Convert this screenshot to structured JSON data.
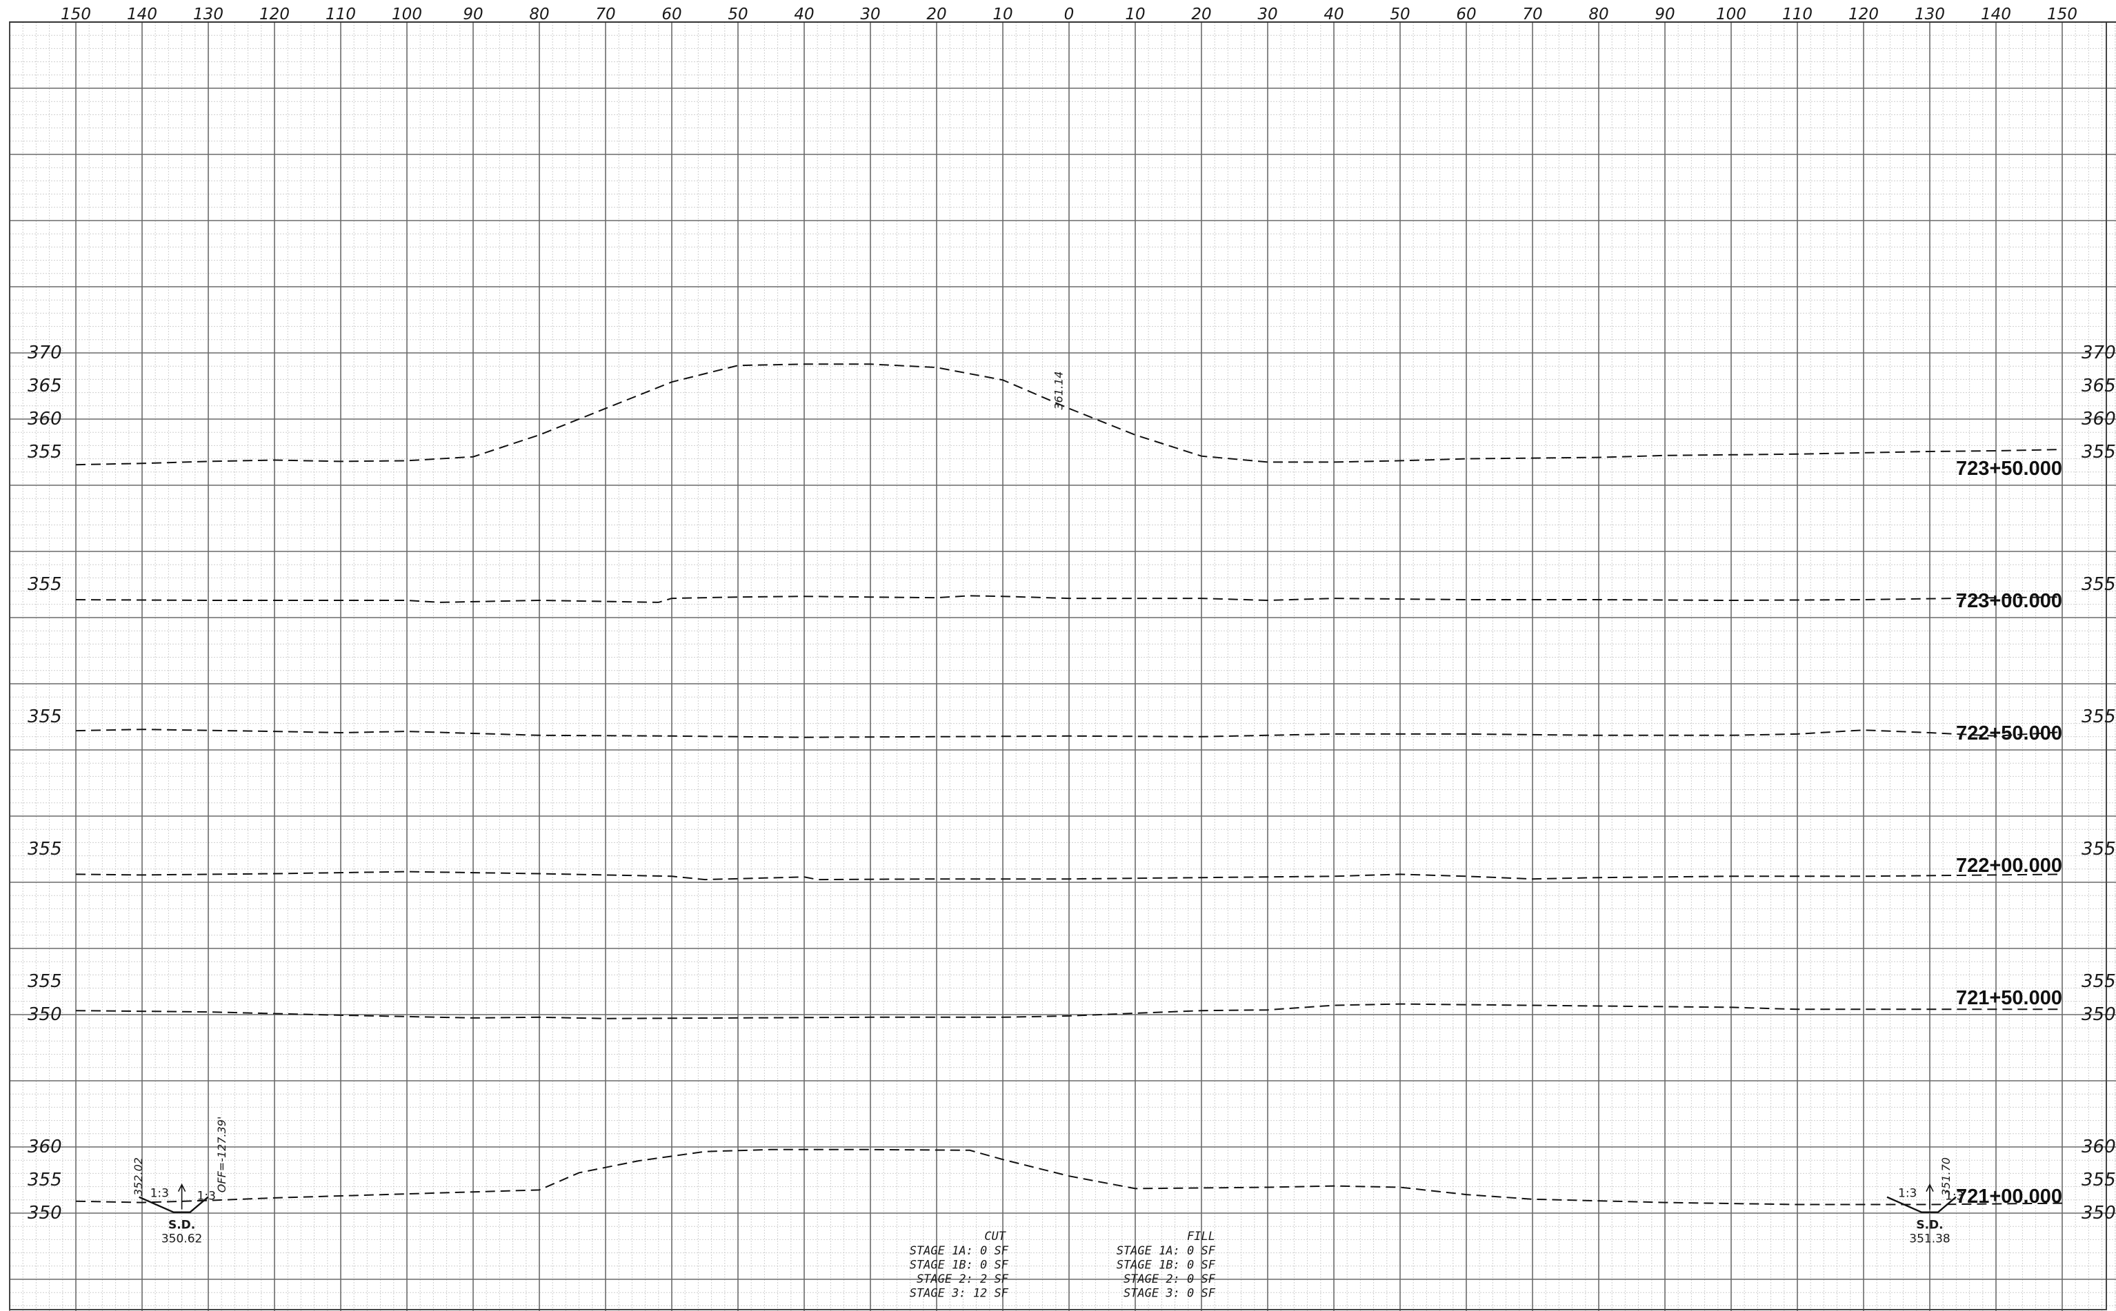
{
  "offset_labels": [
    "150",
    "140",
    "130",
    "120",
    "110",
    "100",
    "90",
    "80",
    "70",
    "60",
    "50",
    "40",
    "30",
    "20",
    "10",
    "0",
    "10",
    "20",
    "30",
    "40",
    "50",
    "60",
    "70",
    "80",
    "90",
    "100",
    "110",
    "120",
    "130",
    "140",
    "150"
  ],
  "sections": [
    {
      "station": "723+50.000",
      "elevation_labels": [
        "370",
        "365",
        "360",
        "355"
      ],
      "ground": [
        [
          -150,
          353.0
        ],
        [
          -140,
          353.2
        ],
        [
          -130,
          353.5
        ],
        [
          -120,
          353.7
        ],
        [
          -110,
          353.5
        ],
        [
          -100,
          353.6
        ],
        [
          -90,
          354.2
        ],
        [
          -80,
          357.5
        ],
        [
          -70,
          361.5
        ],
        [
          -60,
          365.5
        ],
        [
          -50,
          368.0
        ],
        [
          -40,
          368.2
        ],
        [
          -30,
          368.2
        ],
        [
          -20,
          367.7
        ],
        [
          -10,
          365.8
        ],
        [
          0,
          361.5
        ],
        [
          10,
          357.5
        ],
        [
          20,
          354.3
        ],
        [
          30,
          353.4
        ],
        [
          40,
          353.4
        ],
        [
          50,
          353.6
        ],
        [
          60,
          353.9
        ],
        [
          70,
          354.0
        ],
        [
          80,
          354.1
        ],
        [
          90,
          354.4
        ],
        [
          100,
          354.5
        ],
        [
          110,
          354.6
        ],
        [
          120,
          354.8
        ],
        [
          130,
          355.0
        ],
        [
          140,
          355.1
        ],
        [
          150,
          355.3
        ]
      ],
      "annotations": [
        {
          "text": "361.14",
          "offset": -1,
          "elevation": 361.3
        }
      ]
    },
    {
      "station": "723+00.000",
      "elevation_labels": [
        "355"
      ],
      "ground": [
        [
          -150,
          352.6
        ],
        [
          -130,
          352.5
        ],
        [
          -100,
          352.5
        ],
        [
          -95,
          352.2
        ],
        [
          -80,
          352.5
        ],
        [
          -62,
          352.2
        ],
        [
          -60,
          352.8
        ],
        [
          -50,
          353.0
        ],
        [
          -40,
          353.1
        ],
        [
          -30,
          353.0
        ],
        [
          -20,
          352.9
        ],
        [
          -15,
          353.2
        ],
        [
          -10,
          353.1
        ],
        [
          0,
          352.8
        ],
        [
          20,
          352.8
        ],
        [
          30,
          352.5
        ],
        [
          40,
          352.8
        ],
        [
          60,
          352.6
        ],
        [
          80,
          352.6
        ],
        [
          100,
          352.5
        ],
        [
          120,
          352.6
        ],
        [
          140,
          352.9
        ],
        [
          150,
          353.0
        ]
      ],
      "annotations": []
    },
    {
      "station": "722+50.000",
      "elevation_labels": [
        "355"
      ],
      "ground": [
        [
          -150,
          352.8
        ],
        [
          -140,
          353.0
        ],
        [
          -120,
          352.7
        ],
        [
          -110,
          352.5
        ],
        [
          -100,
          352.7
        ],
        [
          -90,
          352.4
        ],
        [
          -80,
          352.1
        ],
        [
          -60,
          352.0
        ],
        [
          -40,
          351.8
        ],
        [
          -20,
          351.9
        ],
        [
          0,
          352.0
        ],
        [
          20,
          351.9
        ],
        [
          30,
          352.1
        ],
        [
          40,
          352.3
        ],
        [
          60,
          352.3
        ],
        [
          80,
          352.1
        ],
        [
          100,
          352.1
        ],
        [
          110,
          352.3
        ],
        [
          120,
          352.9
        ],
        [
          130,
          352.5
        ],
        [
          140,
          352.0
        ],
        [
          150,
          352.6
        ]
      ],
      "annotations": []
    },
    {
      "station": "722+00.000",
      "elevation_labels": [
        "355"
      ],
      "ground": [
        [
          -150,
          351.1
        ],
        [
          -140,
          351.0
        ],
        [
          -120,
          351.2
        ],
        [
          -100,
          351.5
        ],
        [
          -80,
          351.2
        ],
        [
          -60,
          350.8
        ],
        [
          -55,
          350.3
        ],
        [
          -40,
          350.7
        ],
        [
          -38,
          350.3
        ],
        [
          -20,
          350.4
        ],
        [
          0,
          350.4
        ],
        [
          20,
          350.6
        ],
        [
          40,
          350.8
        ],
        [
          50,
          351.1
        ],
        [
          60,
          350.8
        ],
        [
          70,
          350.4
        ],
        [
          80,
          350.6
        ],
        [
          100,
          350.8
        ],
        [
          120,
          350.8
        ],
        [
          140,
          351.0
        ],
        [
          150,
          351.1
        ]
      ],
      "annotations": []
    },
    {
      "station": "721+50.000",
      "elevation_labels": [
        "355",
        "350"
      ],
      "ground": [
        [
          -150,
          350.5
        ],
        [
          -130,
          350.3
        ],
        [
          -110,
          349.8
        ],
        [
          -90,
          349.4
        ],
        [
          -80,
          349.5
        ],
        [
          -70,
          349.3
        ],
        [
          -50,
          349.4
        ],
        [
          -30,
          349.5
        ],
        [
          -10,
          349.5
        ],
        [
          0,
          349.7
        ],
        [
          10,
          350.1
        ],
        [
          20,
          350.5
        ],
        [
          30,
          350.6
        ],
        [
          40,
          351.3
        ],
        [
          50,
          351.5
        ],
        [
          60,
          351.4
        ],
        [
          80,
          351.2
        ],
        [
          100,
          351.0
        ],
        [
          110,
          350.7
        ],
        [
          130,
          350.7
        ],
        [
          150,
          350.7
        ]
      ],
      "annotations": []
    },
    {
      "station": "721+00.000",
      "elevation_labels": [
        "360",
        "355",
        "350"
      ],
      "ground": [
        [
          -150,
          351.7
        ],
        [
          -140,
          351.5
        ],
        [
          -130,
          351.8
        ],
        [
          -120,
          352.2
        ],
        [
          -100,
          352.8
        ],
        [
          -80,
          353.4
        ],
        [
          -74,
          356.0
        ],
        [
          -65,
          357.8
        ],
        [
          -55,
          359.2
        ],
        [
          -45,
          359.5
        ],
        [
          -30,
          359.5
        ],
        [
          -15,
          359.4
        ],
        [
          -10,
          358.0
        ],
        [
          0,
          355.5
        ],
        [
          10,
          353.6
        ],
        [
          30,
          353.8
        ],
        [
          40,
          354.0
        ],
        [
          50,
          353.8
        ],
        [
          60,
          352.7
        ],
        [
          70,
          352.0
        ],
        [
          90,
          351.5
        ],
        [
          110,
          351.2
        ],
        [
          130,
          351.2
        ],
        [
          150,
          351.4
        ]
      ],
      "annotations": [
        {
          "text": "352.02",
          "offset": -140,
          "elevation": 352.5
        },
        {
          "text": "OFF=-127.39'",
          "offset": -127.4,
          "elevation": 353.0
        },
        {
          "text": "351.70",
          "offset": 133,
          "elevation": 352.5
        }
      ],
      "ditches": [
        {
          "label": "S.D.",
          "elevation": "350.62",
          "slope_left": "1:3",
          "slope_right": "1:3",
          "offset": -134
        },
        {
          "label": "S.D.",
          "elevation": "351.38",
          "slope_left": "1:3",
          "slope_right": "1:3",
          "offset": 130
        }
      ],
      "quantities": {
        "cut_header": "CUT",
        "fill_header": "FILL",
        "cut": [
          "STAGE 1A: 0 SF",
          "STAGE 1B: 0 SF",
          "STAGE 2: 2 SF",
          "STAGE 3: 12 SF"
        ],
        "fill": [
          "STAGE 1A: 0 SF",
          "STAGE 1B: 0 SF",
          "STAGE 2: 0 SF",
          "STAGE 3: 0 SF"
        ]
      }
    }
  ]
}
